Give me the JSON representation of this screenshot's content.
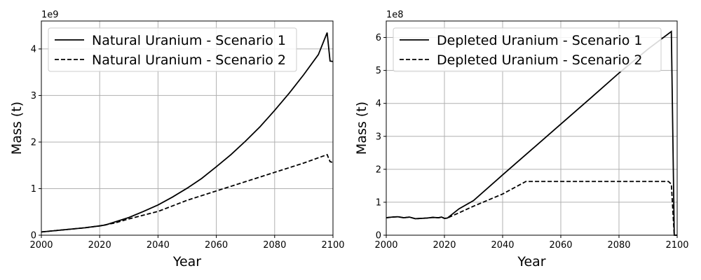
{
  "chart_data": [
    {
      "type": "line",
      "xlabel": "Year",
      "ylabel": "Mass (t)",
      "offset_label": "1e9",
      "xlim": [
        2000,
        2100
      ],
      "ylim": [
        0,
        4.6
      ],
      "xticks": [
        2000,
        2020,
        2040,
        2060,
        2080,
        2100
      ],
      "yticks": [
        0,
        1,
        2,
        3,
        4
      ],
      "grid": true,
      "legend_position": "top-left",
      "series": [
        {
          "name": "Natural Uranium - Scenario 1",
          "dash": "solid",
          "points": [
            [
              2000,
              0.07
            ],
            [
              2005,
              0.1
            ],
            [
              2010,
              0.13
            ],
            [
              2015,
              0.16
            ],
            [
              2020,
              0.2
            ],
            [
              2022,
              0.22
            ],
            [
              2025,
              0.28
            ],
            [
              2030,
              0.38
            ],
            [
              2035,
              0.51
            ],
            [
              2040,
              0.65
            ],
            [
              2045,
              0.82
            ],
            [
              2050,
              1.01
            ],
            [
              2055,
              1.22
            ],
            [
              2060,
              1.47
            ],
            [
              2065,
              1.73
            ],
            [
              2070,
              2.02
            ],
            [
              2075,
              2.33
            ],
            [
              2080,
              2.68
            ],
            [
              2085,
              3.05
            ],
            [
              2090,
              3.45
            ],
            [
              2095,
              3.88
            ],
            [
              2098,
              4.35
            ],
            [
              2099,
              3.74
            ],
            [
              2100,
              3.73
            ]
          ]
        },
        {
          "name": "Natural Uranium - Scenario 2",
          "dash": "dashed",
          "points": [
            [
              2000,
              0.07
            ],
            [
              2005,
              0.1
            ],
            [
              2010,
              0.13
            ],
            [
              2015,
              0.16
            ],
            [
              2020,
              0.2
            ],
            [
              2025,
              0.26
            ],
            [
              2030,
              0.35
            ],
            [
              2040,
              0.51
            ],
            [
              2050,
              0.75
            ],
            [
              2060,
              0.95
            ],
            [
              2070,
              1.15
            ],
            [
              2080,
              1.35
            ],
            [
              2090,
              1.55
            ],
            [
              2098,
              1.73
            ],
            [
              2099,
              1.58
            ],
            [
              2100,
              1.56
            ]
          ]
        }
      ]
    },
    {
      "type": "line",
      "xlabel": "Year",
      "ylabel": "Mass (t)",
      "offset_label": "1e8",
      "xlim": [
        2000,
        2100
      ],
      "ylim": [
        0,
        6.5
      ],
      "xticks": [
        2000,
        2020,
        2040,
        2060,
        2080,
        2100
      ],
      "yticks": [
        0,
        1,
        2,
        3,
        4,
        5,
        6
      ],
      "grid": true,
      "legend_position": "top-left",
      "series": [
        {
          "name": "Depleted Uranium - Scenario 1",
          "dash": "solid",
          "points": [
            [
              2000,
              0.53
            ],
            [
              2002,
              0.55
            ],
            [
              2004,
              0.56
            ],
            [
              2006,
              0.53
            ],
            [
              2008,
              0.55
            ],
            [
              2010,
              0.5
            ],
            [
              2012,
              0.51
            ],
            [
              2014,
              0.52
            ],
            [
              2016,
              0.54
            ],
            [
              2018,
              0.53
            ],
            [
              2019,
              0.55
            ],
            [
              2020,
              0.51
            ],
            [
              2021,
              0.52
            ],
            [
              2025,
              0.8
            ],
            [
              2030,
              1.05
            ],
            [
              2040,
              1.83
            ],
            [
              2050,
              2.6
            ],
            [
              2060,
              3.37
            ],
            [
              2070,
              4.14
            ],
            [
              2080,
              4.92
            ],
            [
              2090,
              5.65
            ],
            [
              2098,
              6.18
            ],
            [
              2099,
              0.0
            ],
            [
              2100,
              0.0
            ]
          ]
        },
        {
          "name": "Depleted Uranium - Scenario 2",
          "dash": "dashed",
          "points": [
            [
              2000,
              0.53
            ],
            [
              2002,
              0.55
            ],
            [
              2004,
              0.56
            ],
            [
              2006,
              0.53
            ],
            [
              2008,
              0.55
            ],
            [
              2010,
              0.5
            ],
            [
              2012,
              0.51
            ],
            [
              2014,
              0.52
            ],
            [
              2016,
              0.54
            ],
            [
              2018,
              0.53
            ],
            [
              2019,
              0.55
            ],
            [
              2020,
              0.51
            ],
            [
              2021,
              0.52
            ],
            [
              2030,
              0.88
            ],
            [
              2040,
              1.25
            ],
            [
              2048,
              1.63
            ],
            [
              2060,
              1.63
            ],
            [
              2070,
              1.63
            ],
            [
              2080,
              1.63
            ],
            [
              2090,
              1.63
            ],
            [
              2097,
              1.63
            ],
            [
              2098,
              1.55
            ],
            [
              2099,
              0.0
            ],
            [
              2100,
              0.0
            ]
          ]
        }
      ]
    }
  ]
}
